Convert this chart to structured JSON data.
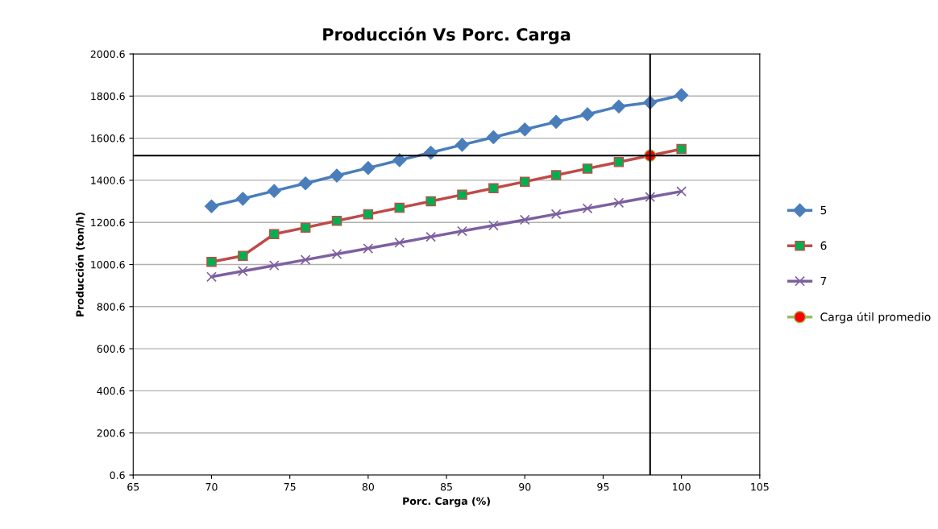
{
  "chart_data": {
    "type": "line",
    "title": "Producción Vs Porc. Carga",
    "xlabel": "Porc. Carga (%)",
    "ylabel": "Producción (ton/h)",
    "x": [
      70,
      72,
      74,
      76,
      78,
      80,
      82,
      84,
      86,
      88,
      90,
      92,
      94,
      96,
      98,
      100
    ],
    "series": [
      {
        "name": "5",
        "color": "#4a7ebb",
        "marker": "diamond",
        "values": [
          1277,
          1313,
          1350,
          1386,
          1423,
          1459,
          1496,
          1532,
          1569,
          1605,
          1642,
          1678,
          1714,
          1751,
          1770,
          1805
        ]
      },
      {
        "name": "6",
        "color": "#be4b48",
        "marker": "square",
        "values": [
          1013,
          1042,
          1145,
          1176,
          1208,
          1239,
          1270,
          1301,
          1332,
          1363,
          1394,
          1425,
          1456,
          1487,
          null,
          1549
        ]
      },
      {
        "name": "7",
        "color": "#7d60a0",
        "marker": "cross",
        "values": [
          942,
          969,
          996,
          1023,
          1050,
          1077,
          1104,
          1132,
          1159,
          1186,
          1213,
          1240,
          1267,
          1294,
          1321,
          1348
        ]
      },
      {
        "name": "Carga útil promedio",
        "color": "#9bbb59",
        "marker": "circle",
        "x": [
          98
        ],
        "values": [
          1518
        ]
      }
    ],
    "ref_lines": [
      {
        "axis": "y",
        "value": 1518,
        "color": "#000000"
      },
      {
        "axis": "x",
        "value": 98,
        "color": "#000000"
      }
    ],
    "xlim": [
      65,
      105
    ],
    "xticks": [
      65,
      70,
      75,
      80,
      85,
      90,
      95,
      100,
      105
    ],
    "ylim": [
      0.6,
      2000.6
    ],
    "yticks": [
      0.6,
      200.6,
      400.6,
      600.6,
      800.6,
      1000.6,
      1200.6,
      1400.6,
      1600.6,
      1800.6,
      2000.6
    ],
    "grid": "y",
    "legend": "right"
  }
}
